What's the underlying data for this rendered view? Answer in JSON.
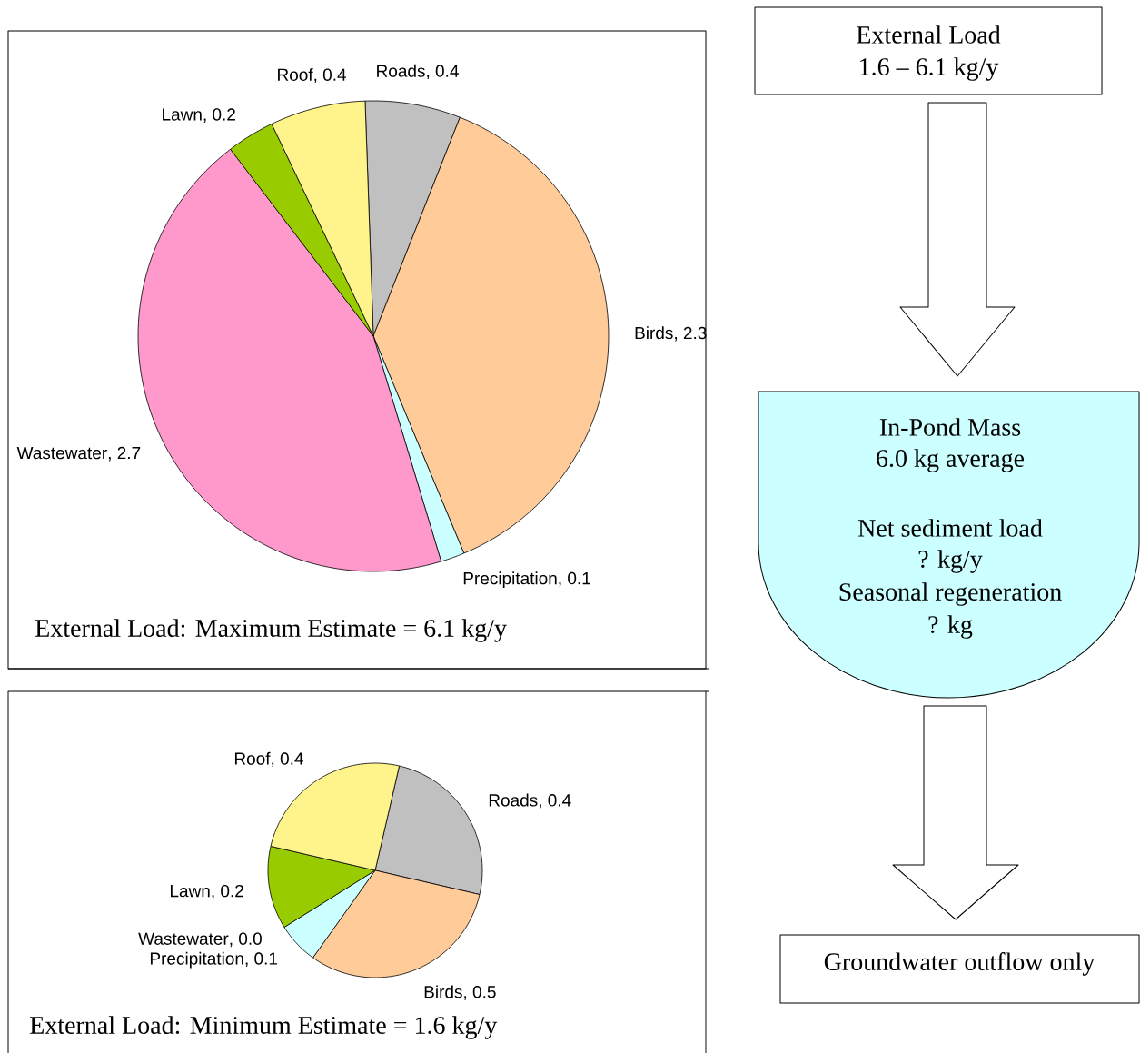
{
  "chart_data": [
    {
      "type": "pie",
      "title": "External Load:  Maximum Estimate = 6.1 kg/y",
      "data_labels": true,
      "categories": [
        "Roads",
        "Birds",
        "Precipitation",
        "Wastewater",
        "Lawn",
        "Roof"
      ],
      "values": [
        0.4,
        2.3,
        0.1,
        2.7,
        0.2,
        0.4
      ],
      "value_labels": [
        ", 0.4",
        ", 2.3",
        ", 0.1",
        ", 2.7",
        ", 0.2",
        ", 0.4"
      ],
      "colors": [
        "#c0c0c0",
        "#ffcc99",
        "#ccffff",
        "#ff99cc",
        "#99cc00",
        "#fff48c"
      ]
    },
    {
      "type": "pie",
      "title": "External Load:  Minimum Estimate = 1.6 kg/y",
      "data_labels": true,
      "categories": [
        "Roads",
        "Birds",
        "Precipitation",
        "Wastewater",
        "Lawn",
        "Roof"
      ],
      "values": [
        0.4,
        0.5,
        0.1,
        0.0,
        0.2,
        0.4
      ],
      "value_labels": [
        ", 0.4",
        ", 0.5",
        ", 0.1",
        ", 0.0",
        ", 0.2",
        ", 0.4"
      ],
      "colors": [
        "#c0c0c0",
        "#ffcc99",
        "#ccffff",
        "#ff99cc",
        "#99cc00",
        "#fff48c"
      ]
    },
    {
      "type": "other",
      "annotations": [
        "External Load",
        "1.6 – 6.1 kg/y",
        "In-Pond Mass",
        "6.0 kg average",
        "Net sediment load",
        "? kg/y",
        "Seasonal regeneration",
        "? kg",
        "Groundwater outflow only"
      ]
    }
  ]
}
